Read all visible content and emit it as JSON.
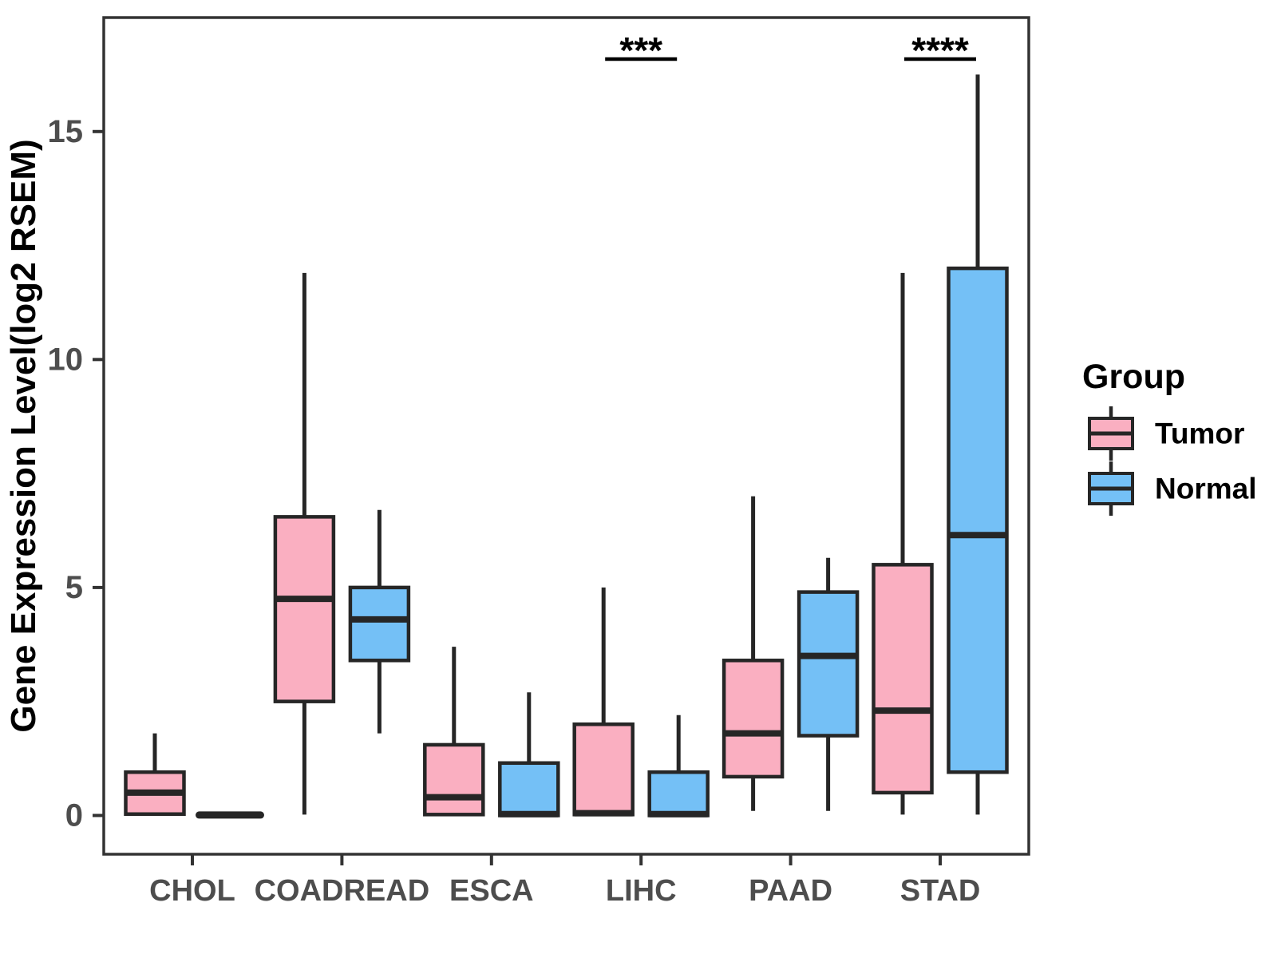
{
  "figure": {
    "background": "#FFFFFF"
  },
  "theme": {
    "box_stroke": "#262626",
    "panel_border": "#333333",
    "tick_color": "#333333",
    "axis_text_color": "#4D4D4D",
    "title_text_color": "#000000",
    "tumor_color": "#FAAFC1",
    "normal_color": "#74C0F6"
  },
  "chart_data": {
    "type": "boxplot",
    "title": "",
    "xlabel": "",
    "ylabel": "Gene Expression Level(log2 RSEM)",
    "categories": [
      "CHOL",
      "COADREAD",
      "ESCA",
      "LIHC",
      "PAAD",
      "STAD"
    ],
    "y_ticks": [
      0,
      5,
      10,
      15
    ],
    "ylim": [
      -0.85,
      17.5
    ],
    "grid": false,
    "legend": {
      "title": "Group",
      "position": "right",
      "entries": [
        {
          "label": "Tumor",
          "color": "#FAAFC1"
        },
        {
          "label": "Normal",
          "color": "#74C0F6"
        }
      ]
    },
    "series": [
      {
        "name": "Tumor",
        "color": "#FAAFC1",
        "boxes": [
          {
            "category": "CHOL",
            "min": 0,
            "q1": 0.03,
            "med": 0.5,
            "q3": 0.95,
            "max": 1.8
          },
          {
            "category": "COADREAD",
            "min": 0.02,
            "q1": 2.5,
            "med": 4.75,
            "q3": 6.55,
            "max": 11.9
          },
          {
            "category": "ESCA",
            "min": 0,
            "q1": 0.02,
            "med": 0.4,
            "q3": 1.55,
            "max": 3.7
          },
          {
            "category": "LIHC",
            "min": 0,
            "q1": 0.02,
            "med": 0.05,
            "q3": 2.0,
            "max": 5.0
          },
          {
            "category": "PAAD",
            "min": 0.1,
            "q1": 0.85,
            "med": 1.8,
            "q3": 3.4,
            "max": 7.0
          },
          {
            "category": "STAD",
            "min": 0.02,
            "q1": 0.5,
            "med": 2.3,
            "q3": 5.5,
            "max": 11.9
          }
        ]
      },
      {
        "name": "Normal",
        "color": "#74C0F6",
        "boxes": [
          {
            "category": "CHOL",
            "min": 0,
            "q1": 0,
            "med": 0.01,
            "q3": 0,
            "max": 0
          },
          {
            "category": "COADREAD",
            "min": 1.8,
            "q1": 3.4,
            "med": 4.3,
            "q3": 5.0,
            "max": 6.7
          },
          {
            "category": "ESCA",
            "min": 0,
            "q1": 0,
            "med": 0.03,
            "q3": 1.15,
            "max": 2.7
          },
          {
            "category": "LIHC",
            "min": 0,
            "q1": 0,
            "med": 0.03,
            "q3": 0.95,
            "max": 2.2
          },
          {
            "category": "PAAD",
            "min": 0.1,
            "q1": 1.75,
            "med": 3.5,
            "q3": 4.9,
            "max": 5.65
          },
          {
            "category": "STAD",
            "min": 0.02,
            "q1": 0.95,
            "med": 6.15,
            "q3": 12.0,
            "max": 16.25
          }
        ]
      }
    ],
    "annotations": [
      {
        "category": "LIHC",
        "label": "***"
      },
      {
        "category": "STAD",
        "label": "****"
      }
    ]
  }
}
